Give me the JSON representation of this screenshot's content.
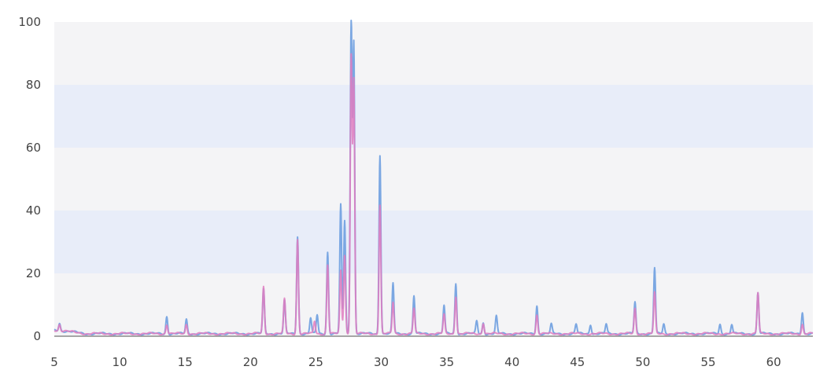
{
  "chart_data": {
    "type": "line",
    "title": "",
    "xlabel": "",
    "ylabel": "",
    "xlim": [
      5,
      63
    ],
    "ylim": [
      0,
      100
    ],
    "x_ticks": [
      5,
      10,
      15,
      20,
      25,
      30,
      35,
      40,
      45,
      50,
      55,
      60
    ],
    "y_ticks": [
      0,
      20,
      40,
      60,
      80,
      100
    ],
    "grid": "horizontal alternating bands",
    "legend": "none",
    "colors": {
      "band_light": "#f4f4f6",
      "band_blue": "#e8edf9",
      "baseline": "#8a8a8a"
    },
    "series": [
      {
        "color": "#6e9fe0",
        "peaks": [
          [
            5.4,
            2.4
          ],
          [
            13.6,
            5.5
          ],
          [
            15.1,
            4.5
          ],
          [
            21.0,
            14
          ],
          [
            22.6,
            10.5
          ],
          [
            23.6,
            31
          ],
          [
            24.6,
            5
          ],
          [
            25.1,
            6
          ],
          [
            25.9,
            26
          ],
          [
            26.9,
            41
          ],
          [
            27.2,
            36
          ],
          [
            27.7,
            100
          ],
          [
            27.9,
            92
          ],
          [
            29.9,
            57
          ],
          [
            30.9,
            16
          ],
          [
            32.5,
            12
          ],
          [
            34.8,
            9
          ],
          [
            35.7,
            16
          ],
          [
            37.3,
            4
          ],
          [
            37.8,
            3.5
          ],
          [
            38.8,
            5.5
          ],
          [
            41.9,
            9
          ],
          [
            43.0,
            3
          ],
          [
            44.9,
            3
          ],
          [
            46.0,
            3
          ],
          [
            47.2,
            3
          ],
          [
            49.4,
            10
          ],
          [
            50.9,
            21
          ],
          [
            51.6,
            3
          ],
          [
            55.9,
            3
          ],
          [
            56.8,
            3
          ],
          [
            58.8,
            13
          ],
          [
            62.2,
            7
          ]
        ]
      },
      {
        "color": "#e07cbf",
        "peaks": [
          [
            5.4,
            2.0
          ],
          [
            13.6,
            3
          ],
          [
            15.1,
            3
          ],
          [
            21.0,
            15
          ],
          [
            22.6,
            11
          ],
          [
            23.6,
            30
          ],
          [
            24.9,
            4
          ],
          [
            25.9,
            22
          ],
          [
            26.9,
            20
          ],
          [
            27.2,
            25
          ],
          [
            27.7,
            88
          ],
          [
            27.9,
            80
          ],
          [
            29.9,
            41
          ],
          [
            30.9,
            10
          ],
          [
            32.5,
            8
          ],
          [
            34.8,
            6
          ],
          [
            35.7,
            12
          ],
          [
            37.8,
            3.5
          ],
          [
            41.9,
            6
          ],
          [
            49.4,
            8
          ],
          [
            50.9,
            13
          ],
          [
            58.8,
            13
          ],
          [
            62.2,
            3
          ]
        ]
      }
    ]
  }
}
